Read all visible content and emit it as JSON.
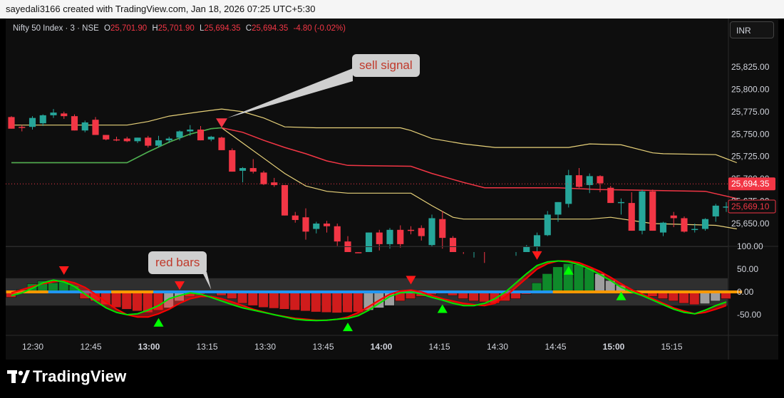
{
  "header": {
    "text": "sayedali3166 created with TradingView.com, Jan 18, 2026 07:25 UTC+5:30"
  },
  "symbol": {
    "name": "Nifty 50 Index · 3 · NSE",
    "o_label": "O",
    "o_value": "25,701.90",
    "h_label": "H",
    "h_value": "25,701.90",
    "l_label": "L",
    "l_value": "25,694.35",
    "c_label": "C",
    "c_value": "25,694.35",
    "change": "-4.80 (-0.02%)"
  },
  "currency_button": "INR",
  "brand": {
    "name": "TradingView"
  },
  "annotations": {
    "sell_signal": "sell signal",
    "red_bars": "red bars"
  },
  "colors": {
    "up": "#26a69a",
    "down": "#f23645",
    "band_upper": "#e8d27a",
    "band_mid": "#f23645",
    "band_green": "#4caf50",
    "osc_green": "#00e600",
    "osc_red": "#ff0000",
    "zero_blue": "#2196f3",
    "zero_orange": "#ff9800"
  },
  "chart_data": [
    {
      "type": "candlestick",
      "panel": "price",
      "price_axis": {
        "ticks": [
          "25,825.00",
          "25,800.00",
          "25,775.00",
          "25,750.00",
          "25,725.00",
          "25,700.00",
          "25,675.00",
          "25,650.00"
        ],
        "tick_values": [
          25825,
          25800,
          25775,
          25750,
          25725,
          25700,
          25675,
          25650
        ],
        "range": [
          25613,
          25839
        ]
      },
      "price_labels": [
        {
          "text": "25,694.35",
          "value": 25694.35
        },
        {
          "text": "25,669.10",
          "value": 25669.1
        }
      ],
      "time_axis": {
        "ticks": [
          "12:30",
          "12:45",
          "13:00",
          "13:15",
          "13:30",
          "13:45",
          "14:00",
          "14:15",
          "14:30",
          "14:45",
          "15:00",
          "15:15"
        ],
        "bold": [
          "13:00",
          "14:00",
          "15:00"
        ]
      },
      "candles": [
        [
          25769,
          25770,
          25756,
          25756
        ],
        [
          25758,
          25760,
          25753,
          25757
        ],
        [
          25758,
          25770,
          25755,
          25768
        ],
        [
          25762,
          25772,
          25759,
          25771
        ],
        [
          25771,
          25778,
          25768,
          25774
        ],
        [
          25773,
          25775,
          25767,
          25770
        ],
        [
          25770,
          25772,
          25754,
          25754
        ],
        [
          25754,
          25765,
          25752,
          25763
        ],
        [
          25766,
          25769,
          25749,
          25749
        ],
        [
          25749,
          25749,
          25743,
          25744
        ],
        [
          25744,
          25747,
          25742,
          25743
        ],
        [
          25745,
          25747,
          25741,
          25742
        ],
        [
          25742,
          25746,
          25740,
          25746
        ],
        [
          25746,
          25748,
          25735,
          25737
        ],
        [
          25737,
          25748,
          25735,
          25743
        ],
        [
          25743,
          25747,
          25740,
          25745
        ],
        [
          25746,
          25754,
          25743,
          25753
        ],
        [
          25753,
          25760,
          25748,
          25755
        ],
        [
          25755,
          25759,
          25743,
          25743
        ],
        [
          25744,
          25748,
          25742,
          25747
        ],
        [
          25746,
          25747,
          25732,
          25732
        ],
        [
          25732,
          25734,
          25708,
          25708
        ],
        [
          25709,
          25713,
          25696,
          25712
        ],
        [
          25712,
          25722,
          25706,
          25708
        ],
        [
          25707,
          25709,
          25693,
          25694
        ],
        [
          25696,
          25701,
          25691,
          25693
        ],
        [
          25693,
          25693,
          25659,
          25659
        ],
        [
          25659,
          25663,
          25651,
          25654
        ],
        [
          25657,
          25667,
          25632,
          25641
        ],
        [
          25644,
          25652,
          25639,
          25650
        ],
        [
          25650,
          25653,
          25640,
          25647
        ],
        [
          25647,
          25650,
          25625,
          25630
        ],
        [
          25630,
          25636,
          25615,
          25618
        ],
        [
          25618,
          25618,
          25613,
          25616
        ],
        [
          25617,
          25640,
          25612,
          25640
        ],
        [
          25640,
          25643,
          25620,
          25627
        ],
        [
          25627,
          25645,
          25622,
          25643
        ],
        [
          25643,
          25648,
          25623,
          25627
        ],
        [
          25643,
          25647,
          25638,
          25642
        ],
        [
          25645,
          25648,
          25631,
          25636
        ],
        [
          25626,
          25660,
          25624,
          25656
        ],
        [
          25655,
          25664,
          25622,
          25634
        ],
        [
          25634,
          25636,
          25616,
          25618
        ],
        [
          25612,
          25616,
          25598,
          25600
        ],
        [
          25600,
          25612,
          25595,
          25604
        ],
        [
          25604,
          25606,
          25590,
          25592
        ],
        [
          25592,
          25596,
          25586,
          25588
        ],
        [
          25588,
          25590,
          25584,
          25586
        ],
        [
          25606,
          25614,
          25604,
          25612
        ],
        [
          25612,
          25626,
          25608,
          25624
        ],
        [
          25624,
          25640,
          25618,
          25637
        ],
        [
          25637,
          25664,
          25636,
          25660
        ],
        [
          25660,
          25674,
          25652,
          25674
        ],
        [
          25672,
          25710,
          25668,
          25704
        ],
        [
          25704,
          25712,
          25690,
          25691
        ],
        [
          25693,
          25706,
          25684,
          25703
        ],
        [
          25703,
          25704,
          25685,
          25695
        ],
        [
          25690,
          25692,
          25673,
          25673
        ],
        [
          25673,
          25678,
          25660,
          25674
        ],
        [
          25673,
          25685,
          25642,
          25642
        ],
        [
          25642,
          25688,
          25638,
          25686
        ],
        [
          25686,
          25688,
          25642,
          25642
        ],
        [
          25640,
          25652,
          25636,
          25651
        ],
        [
          25659,
          25663,
          25646,
          25656
        ],
        [
          25656,
          25658,
          25640,
          25641
        ],
        [
          25644,
          25650,
          25640,
          25644
        ],
        [
          25644,
          25656,
          25642,
          25655
        ],
        [
          25658,
          25672,
          25652,
          25670
        ],
        [
          25668,
          25674,
          25663,
          25669
        ]
      ],
      "bands": {
        "upper": [
          [
            0,
            25760
          ],
          [
            3,
            25760
          ],
          [
            7,
            25760
          ],
          [
            11,
            25760
          ],
          [
            13,
            25764
          ],
          [
            15,
            25770
          ],
          [
            18,
            25775
          ],
          [
            20,
            25778
          ],
          [
            22,
            25775
          ],
          [
            24,
            25768
          ],
          [
            26,
            25758
          ],
          [
            29,
            25757
          ],
          [
            32,
            25757
          ],
          [
            37,
            25757
          ],
          [
            38,
            25754
          ],
          [
            40,
            25745
          ],
          [
            43,
            25739
          ],
          [
            46,
            25735
          ],
          [
            53,
            25735
          ],
          [
            55,
            25739
          ],
          [
            58,
            25738
          ],
          [
            61,
            25729
          ],
          [
            62,
            25728
          ],
          [
            67,
            25727
          ],
          [
            69,
            25718
          ]
        ],
        "middle": [
          [
            20,
            25757
          ],
          [
            22,
            25752
          ],
          [
            24,
            25743
          ],
          [
            26,
            25735
          ],
          [
            28,
            25728
          ],
          [
            30,
            25720
          ],
          [
            32,
            25715
          ],
          [
            38,
            25714
          ],
          [
            40,
            25706
          ],
          [
            43,
            25696
          ],
          [
            45,
            25690
          ],
          [
            52,
            25690
          ],
          [
            56,
            25688
          ],
          [
            61,
            25687
          ],
          [
            66,
            25686
          ],
          [
            69,
            25678
          ]
        ],
        "lower": [
          [
            0,
            25718
          ],
          [
            11,
            25718
          ],
          [
            13,
            25730
          ],
          [
            15,
            25741
          ],
          [
            17,
            25750
          ],
          [
            19,
            25756
          ],
          [
            20,
            25757
          ],
          [
            22,
            25740
          ],
          [
            24,
            25723
          ],
          [
            26,
            25706
          ],
          [
            28,
            25692
          ],
          [
            30,
            25686
          ],
          [
            32,
            25684
          ],
          [
            38,
            25684
          ],
          [
            40,
            25670
          ],
          [
            42,
            25657
          ],
          [
            43,
            25655
          ],
          [
            55,
            25655
          ],
          [
            57,
            25657
          ],
          [
            61,
            25650
          ],
          [
            67,
            25648
          ],
          [
            69,
            25644
          ]
        ],
        "lower_green_segment": [
          [
            0,
            25718
          ],
          [
            11,
            25718
          ],
          [
            13,
            25730
          ],
          [
            15,
            25741
          ],
          [
            17,
            25750
          ],
          [
            19,
            25756
          ],
          [
            20,
            25757
          ]
        ]
      },
      "markers": [
        {
          "type": "sell",
          "index": 20,
          "value": 25762
        }
      ]
    },
    {
      "type": "oscillator",
      "panel": "indicator",
      "y_axis": {
        "ticks": [
          "100.00",
          "50.00",
          "0.00",
          "-50.00"
        ],
        "tick_values": [
          100,
          50,
          0,
          -50
        ],
        "range": [
          -95,
          100
        ]
      },
      "band": [
        -30,
        30
      ],
      "histogram": [
        -12,
        5,
        18,
        24,
        20,
        22,
        14,
        -15,
        -20,
        -28,
        -34,
        -38,
        -42,
        -45,
        -40,
        -35,
        -20,
        -10,
        -5,
        -3,
        -8,
        -15,
        -25,
        -30,
        -34,
        -36,
        -38,
        -40,
        -42,
        -44,
        -45,
        -46,
        -45,
        -44,
        -40,
        -35,
        -30,
        -20,
        -15,
        -10,
        -6,
        -4,
        -8,
        -15,
        -20,
        -22,
        -25,
        -20,
        -15,
        -5,
        20,
        40,
        55,
        62,
        60,
        52,
        40,
        25,
        15,
        5,
        -3,
        -10,
        -15,
        -20,
        -25,
        -28,
        -26,
        -20,
        -15
      ],
      "gray_bars": [
        15,
        16,
        34,
        35,
        36,
        56,
        57,
        58,
        66,
        67
      ],
      "signal_green": [
        -8,
        -2,
        8,
        20,
        26,
        22,
        12,
        -5,
        -20,
        -35,
        -45,
        -50,
        -48,
        -40,
        -30,
        -15,
        -8,
        -2,
        -5,
        -12,
        -20,
        -28,
        -35,
        -40,
        -45,
        -50,
        -55,
        -60,
        -62,
        -63,
        -62,
        -60,
        -58,
        -52,
        -40,
        -25,
        -10,
        -2,
        0,
        -5,
        -12,
        -18,
        -25,
        -30,
        -30,
        -25,
        -15,
        0,
        20,
        40,
        58,
        66,
        68,
        66,
        60,
        50,
        38,
        25,
        10,
        0,
        -8,
        -18,
        -28,
        -38,
        -45,
        -48,
        -40,
        -30,
        -22
      ],
      "signal_red": [
        -2,
        5,
        12,
        18,
        22,
        25,
        20,
        10,
        -5,
        -22,
        -38,
        -50,
        -55,
        -55,
        -48,
        -38,
        -25,
        -15,
        -10,
        -10,
        -15,
        -22,
        -30,
        -38,
        -44,
        -50,
        -54,
        -58,
        -60,
        -62,
        -62,
        -60,
        -55,
        -45,
        -32,
        -18,
        -5,
        2,
        4,
        0,
        -8,
        -15,
        -20,
        -25,
        -28,
        -30,
        -25,
        -10,
        10,
        30,
        50,
        62,
        68,
        68,
        64,
        55,
        45,
        32,
        18,
        5,
        -5,
        -15,
        -25,
        -35,
        -42,
        -48,
        -45,
        -38,
        -30
      ],
      "zero_line_segments": [
        {
          "from": 0,
          "to": 4,
          "color": "orange"
        },
        {
          "from": 4,
          "to": 10,
          "color": "blue"
        },
        {
          "from": 10,
          "to": 14,
          "color": "orange"
        },
        {
          "from": 14,
          "to": 52,
          "color": "blue"
        },
        {
          "from": 52,
          "to": 56,
          "color": "orange"
        },
        {
          "from": 56,
          "to": 64,
          "color": "orange"
        },
        {
          "from": 64,
          "to": 69,
          "color": "orange"
        }
      ],
      "markers": [
        {
          "type": "down",
          "index": 5
        },
        {
          "type": "down",
          "index": 16
        },
        {
          "type": "down",
          "index": 38
        },
        {
          "type": "down",
          "index": 50
        },
        {
          "type": "up",
          "index": 14
        },
        {
          "type": "up",
          "index": 32
        },
        {
          "type": "up",
          "index": 41
        },
        {
          "type": "up",
          "index": 53
        },
        {
          "type": "up",
          "index": 58
        }
      ]
    }
  ]
}
